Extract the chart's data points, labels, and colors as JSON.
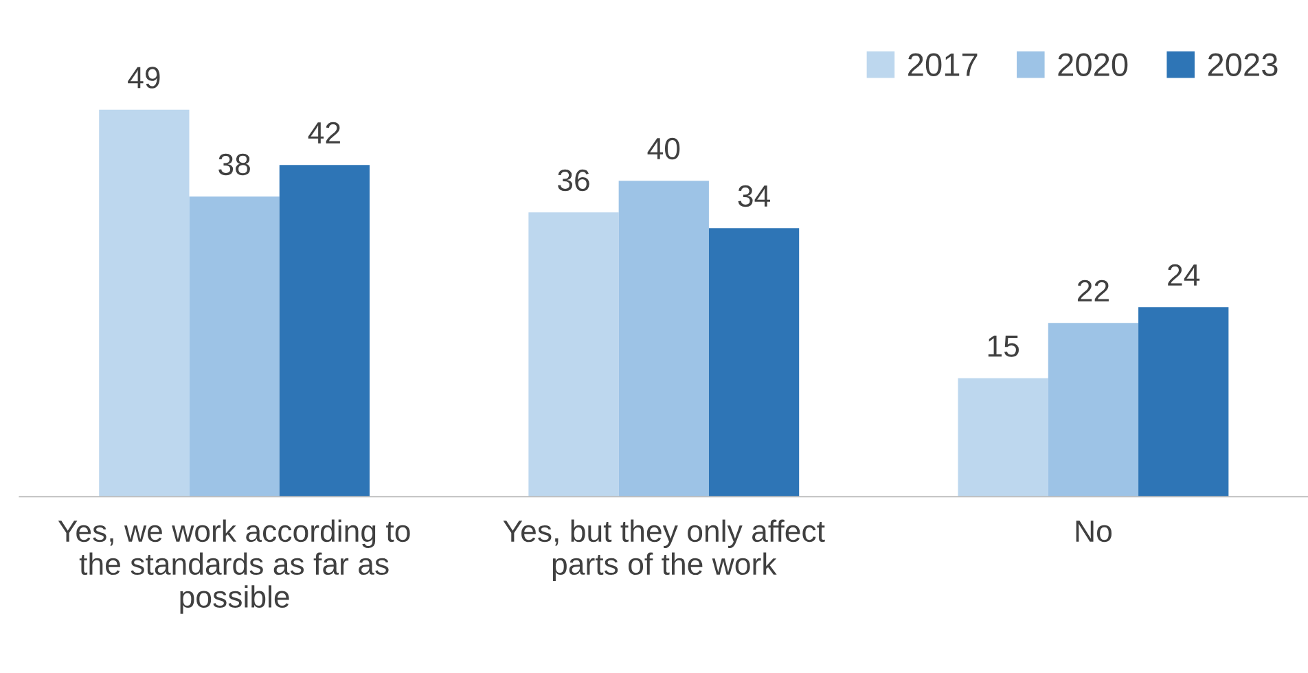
{
  "chart_data": {
    "type": "bar",
    "categories": [
      "Yes, we work according to the standards as far as possible",
      "Yes, but they only affect parts of the work",
      "No"
    ],
    "series": [
      {
        "name": "2017",
        "color": "#bdd7ee",
        "values": [
          49,
          36,
          15
        ]
      },
      {
        "name": "2020",
        "color": "#9dc3e6",
        "values": [
          38,
          40,
          22
        ]
      },
      {
        "name": "2023",
        "color": "#2e75b6",
        "values": [
          42,
          34,
          24
        ]
      }
    ],
    "data_labels": true,
    "legend": "top right",
    "grid": false
  }
}
